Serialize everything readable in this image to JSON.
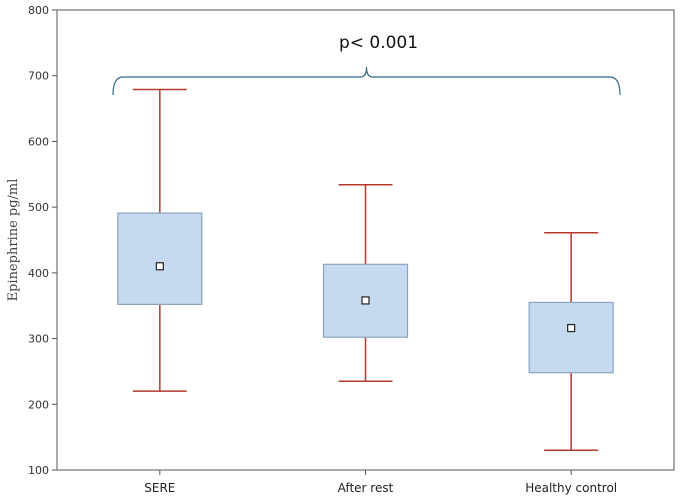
{
  "chart_data": {
    "type": "boxplot",
    "ylabel": "Epinephrine pg/ml",
    "xlabel": "",
    "ylim": [
      100,
      800
    ],
    "yticks": [
      100,
      200,
      300,
      400,
      500,
      600,
      700,
      800
    ],
    "grid": false,
    "categories": [
      "SERE",
      "After rest",
      "Healthy control"
    ],
    "series": [
      {
        "values": [
          {
            "min": 220,
            "q1": 352,
            "mean": 410,
            "q3": 491,
            "max": 679
          },
          {
            "min": 235,
            "q1": 302,
            "mean": 358,
            "q3": 413,
            "max": 534
          },
          {
            "min": 130,
            "q1": 248,
            "mean": 316,
            "q3": 355,
            "max": 461
          }
        ]
      }
    ],
    "annotation": {
      "text": "p< 0.001",
      "spans": [
        "SERE",
        "Healthy control"
      ]
    },
    "colors": {
      "box_fill": "#c5d9f1",
      "box_stroke": "#8ca3be",
      "whisker": "#b03a2e",
      "bracket": "#2e6b8a"
    }
  }
}
